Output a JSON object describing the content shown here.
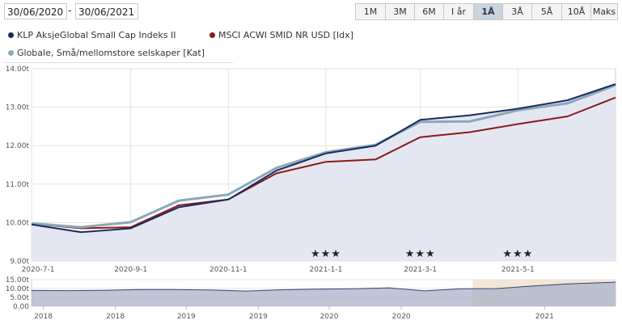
{
  "date_range": {
    "from": "30/06/2020",
    "separator": "-",
    "to": "30/06/2021"
  },
  "range_buttons": [
    {
      "label": "1M",
      "active": false
    },
    {
      "label": "3M",
      "active": false
    },
    {
      "label": "6M",
      "active": false
    },
    {
      "label": "I år",
      "active": false
    },
    {
      "label": "1Å",
      "active": true
    },
    {
      "label": "3Å",
      "active": false
    },
    {
      "label": "5Å",
      "active": false
    },
    {
      "label": "10Å",
      "active": false
    },
    {
      "label": "Maks",
      "active": false
    }
  ],
  "legend": [
    {
      "label": "KLP AksjeGlobal Small Cap Indeks II",
      "color": "#1b2a5e"
    },
    {
      "label": "MSCI ACWI SMID NR USD [Idx]",
      "color": "#8b1a1a"
    },
    {
      "label": "Globale, Små/mellomstore selskaper [Kat]",
      "color": "#8aa8b8"
    }
  ],
  "chart_data": {
    "type": "line",
    "x_dates": [
      "2020-7-1",
      "2020-8-1",
      "2020-9-1",
      "2020-10-1",
      "2020-11-1",
      "2020-12-1",
      "2021-1-1",
      "2021-2-1",
      "2021-3-1",
      "2021-4-1",
      "2021-5-1",
      "2021-6-1",
      "2021-7-1"
    ],
    "xlim": [
      "2020-7-1",
      "2021-7-1"
    ],
    "x_tick_labels": [
      "2020-7-1",
      "2020-9-1",
      "2020-11-1",
      "2021-1-1",
      "2021-3-1",
      "2021-5-1"
    ],
    "x_tick_dates": [
      "2020-7-1",
      "2020-9-1",
      "2020-11-1",
      "2021-1-1",
      "2021-3-1",
      "2021-5-1"
    ],
    "y_tick_labels": [
      "9.00t",
      "10.00t",
      "11.00t",
      "12.00t",
      "13.00t",
      "14.00t"
    ],
    "y_tick_values": [
      9000,
      10000,
      11000,
      12000,
      13000,
      14000
    ],
    "ylim": [
      9000,
      14000
    ],
    "series": [
      {
        "name": "KLP AksjeGlobal Small Cap Indeks II",
        "color": "#1b2a5e",
        "values": [
          9950,
          9750,
          9850,
          10400,
          10600,
          11350,
          11800,
          12000,
          12670,
          12790,
          12960,
          13180,
          13600
        ]
      },
      {
        "name": "MSCI ACWI SMID NR USD [Idx]",
        "color": "#8b1a1a",
        "values": [
          9970,
          9850,
          9880,
          10450,
          10600,
          11280,
          11580,
          11640,
          12220,
          12350,
          12560,
          12760,
          13250
        ]
      },
      {
        "name": "Globale, Små/mellomstore selskaper [Kat]",
        "color": "#8aa8b8",
        "values": [
          9980,
          9880,
          10010,
          10570,
          10730,
          11420,
          11830,
          12020,
          12620,
          12630,
          12920,
          13100,
          13570
        ]
      }
    ],
    "ratings": [
      {
        "date": "2021-1-1",
        "label": "★★★"
      },
      {
        "date": "2021-3-1",
        "label": "★★★"
      },
      {
        "date": "2021-5-1",
        "label": "★★★"
      }
    ],
    "navigator": {
      "type": "area",
      "y_tick_labels": [
        "0.00",
        "5.00t",
        "10.00t",
        "15.00t"
      ],
      "y_tick_values": [
        0,
        5000,
        10000,
        15000
      ],
      "ylim": [
        0,
        15000
      ],
      "x_tick_labels": [
        "2018",
        "2018",
        "2019",
        "2019",
        "2020",
        "2020",
        "2021"
      ],
      "x_tick_dates": [
        "2017-7-1",
        "2018-1-1",
        "2018-7-1",
        "2019-1-1",
        "2019-7-1",
        "2020-1-1",
        "2021-1-1"
      ],
      "xlim": [
        "2017-6-1",
        "2021-7-1"
      ],
      "selection": [
        "2020-7-1",
        "2021-7-1"
      ],
      "x_dates": [
        "2017-6-1",
        "2017-9-1",
        "2017-12-1",
        "2018-3-1",
        "2018-6-1",
        "2018-9-1",
        "2018-12-1",
        "2019-3-1",
        "2019-6-1",
        "2019-9-1",
        "2019-12-1",
        "2020-3-1",
        "2020-6-1",
        "2020-9-1",
        "2020-12-1",
        "2021-3-1",
        "2021-7-1"
      ],
      "values": [
        8900,
        8800,
        9000,
        9400,
        9400,
        9200,
        8600,
        9300,
        9700,
        9900,
        10400,
        8700,
        9900,
        10000,
        11400,
        12600,
        13600
      ]
    }
  }
}
